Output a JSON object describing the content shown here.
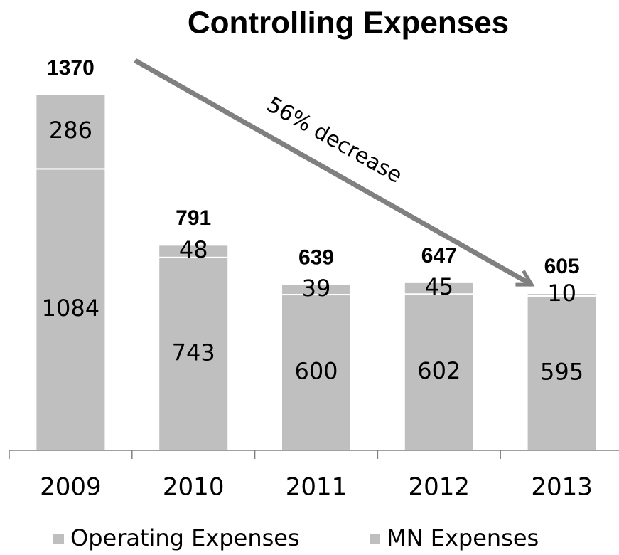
{
  "chart_data": {
    "type": "stacked_bar",
    "title": "Controlling Expenses",
    "annotation": "56% decrease",
    "categories": [
      "2009",
      "2010",
      "2011",
      "2012",
      "2013"
    ],
    "series": [
      {
        "name": "Operating Expenses",
        "color": "#bfbfbf",
        "values": [
          1084,
          743,
          600,
          602,
          595
        ]
      },
      {
        "name": "MN Expenses",
        "color": "#bfbfbf",
        "values": [
          286,
          48,
          39,
          45,
          10
        ]
      }
    ],
    "totals": [
      1370,
      791,
      639,
      647,
      605
    ]
  }
}
